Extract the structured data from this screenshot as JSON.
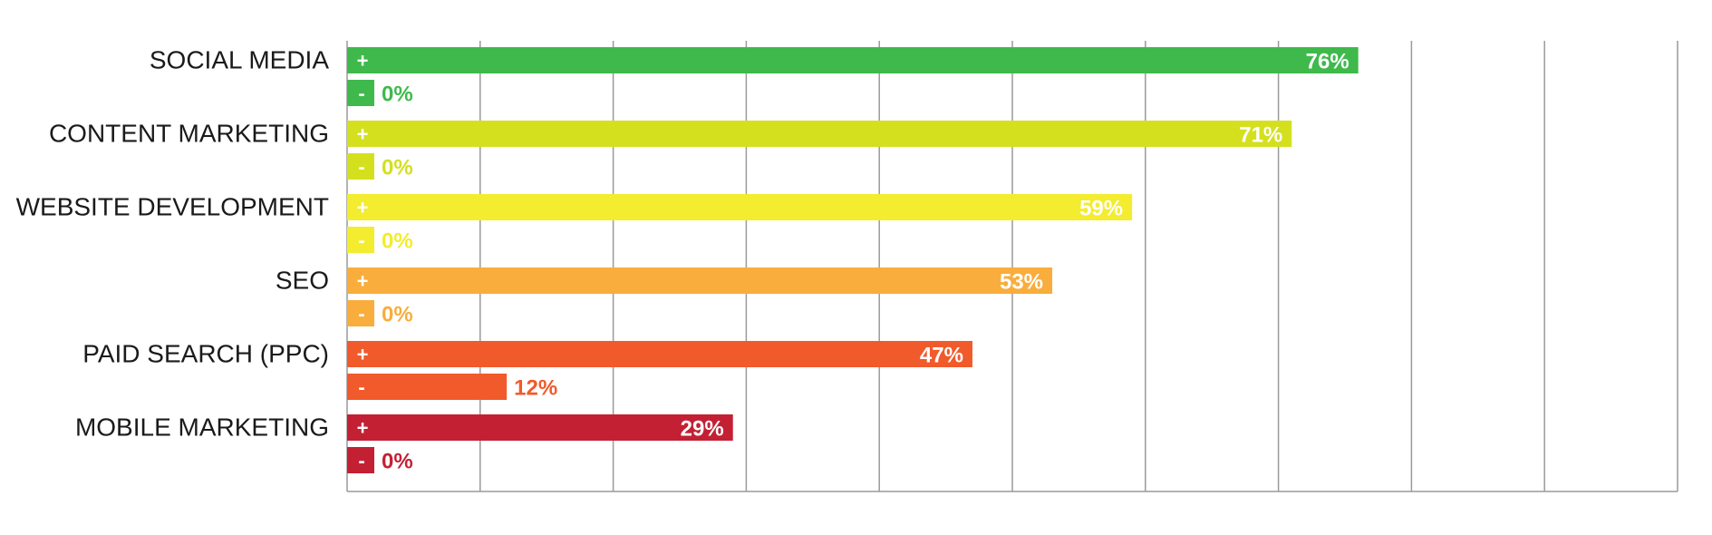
{
  "chart_data": {
    "type": "bar",
    "orientation": "horizontal",
    "xlim": [
      0,
      100
    ],
    "grid": true,
    "legend": "none",
    "series": [
      {
        "name": "+"
      },
      {
        "name": "-"
      }
    ],
    "categories": [
      {
        "label": "SOCIAL MEDIA",
        "color": "#3fb94c",
        "positive": 76,
        "negative": 0,
        "positive_label": "76%",
        "negative_label": "0%"
      },
      {
        "label": "CONTENT MARKETING",
        "color": "#d4e01e",
        "positive": 71,
        "negative": 0,
        "positive_label": "71%",
        "negative_label": "0%"
      },
      {
        "label": "WEBSITE DEVELOPMENT",
        "color": "#f3ec2f",
        "positive": 59,
        "negative": 0,
        "positive_label": "59%",
        "negative_label": "0%"
      },
      {
        "label": "SEO",
        "color": "#f9ad3c",
        "positive": 53,
        "negative": 0,
        "positive_label": "53%",
        "negative_label": "0%"
      },
      {
        "label": "PAID SEARCH (PPC)",
        "color": "#f15a2b",
        "positive": 47,
        "negative": 12,
        "positive_label": "47%",
        "negative_label": "12%"
      },
      {
        "label": "MOBILE MARKETING",
        "color": "#c32034",
        "positive": 29,
        "negative": 0,
        "positive_label": "29%",
        "negative_label": "0%"
      }
    ]
  }
}
